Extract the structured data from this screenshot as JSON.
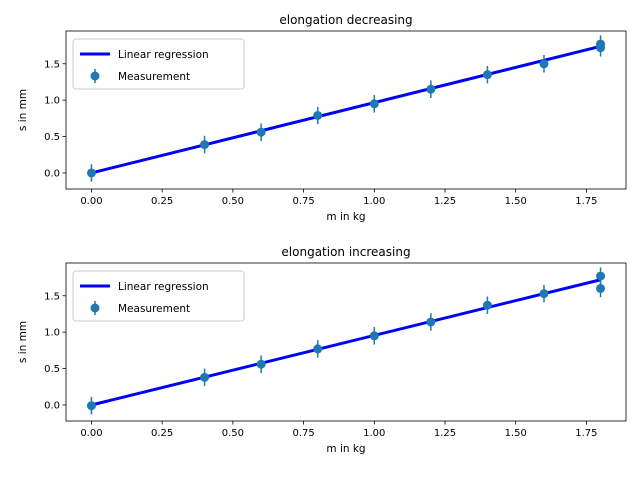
{
  "colors": {
    "regression": "#0000ff",
    "measurement": "#1f77b4",
    "axis": "#000000",
    "legend_border": "#cccccc"
  },
  "chart_data": [
    {
      "type": "scatter",
      "title": "elongation decreasing",
      "xlabel": "m in kg",
      "ylabel": "s in mm",
      "xlim": [
        -0.09,
        1.89
      ],
      "ylim": [
        -0.22,
        1.95
      ],
      "xticks": [
        0.0,
        0.25,
        0.5,
        0.75,
        1.0,
        1.25,
        1.5,
        1.75
      ],
      "xtick_labels": [
        "0.00",
        "0.25",
        "0.50",
        "0.75",
        "1.00",
        "1.25",
        "1.50",
        "1.75"
      ],
      "yticks": [
        0.0,
        0.5,
        1.0,
        1.5
      ],
      "ytick_labels": [
        "0.0",
        "0.5",
        "1.0",
        "1.5"
      ],
      "legend_position": "top-left",
      "legend": [
        "Linear regression",
        "Measurement"
      ],
      "regression": {
        "name": "Linear regression",
        "x": [
          0.0,
          1.8
        ],
        "y": [
          0.0,
          1.74
        ]
      },
      "measurement": {
        "name": "Measurement",
        "x": [
          0.0,
          0.4,
          0.6,
          0.8,
          1.0,
          1.2,
          1.4,
          1.6,
          1.8,
          1.8
        ],
        "y": [
          0.0,
          0.39,
          0.56,
          0.79,
          0.95,
          1.15,
          1.35,
          1.5,
          1.77,
          1.72
        ],
        "yerr": [
          0.12,
          0.12,
          0.12,
          0.12,
          0.12,
          0.12,
          0.12,
          0.12,
          0.12,
          0.12
        ]
      }
    },
    {
      "type": "scatter",
      "title": "elongation increasing",
      "xlabel": "m in kg",
      "ylabel": "s in mm",
      "xlim": [
        -0.09,
        1.89
      ],
      "ylim": [
        -0.22,
        1.95
      ],
      "xticks": [
        0.0,
        0.25,
        0.5,
        0.75,
        1.0,
        1.25,
        1.5,
        1.75
      ],
      "xtick_labels": [
        "0.00",
        "0.25",
        "0.50",
        "0.75",
        "1.00",
        "1.25",
        "1.50",
        "1.75"
      ],
      "yticks": [
        0.0,
        0.5,
        1.0,
        1.5
      ],
      "ytick_labels": [
        "0.0",
        "0.5",
        "1.0",
        "1.5"
      ],
      "legend_position": "top-left",
      "legend": [
        "Linear regression",
        "Measurement"
      ],
      "regression": {
        "name": "Linear regression",
        "x": [
          0.0,
          1.8
        ],
        "y": [
          0.0,
          1.72
        ]
      },
      "measurement": {
        "name": "Measurement",
        "x": [
          0.0,
          0.4,
          0.6,
          0.8,
          1.0,
          1.2,
          1.4,
          1.6,
          1.8,
          1.8
        ],
        "y": [
          -0.01,
          0.38,
          0.56,
          0.77,
          0.95,
          1.14,
          1.37,
          1.53,
          1.77,
          1.6
        ],
        "yerr": [
          0.12,
          0.12,
          0.12,
          0.12,
          0.12,
          0.12,
          0.12,
          0.12,
          0.12,
          0.12
        ]
      }
    }
  ]
}
